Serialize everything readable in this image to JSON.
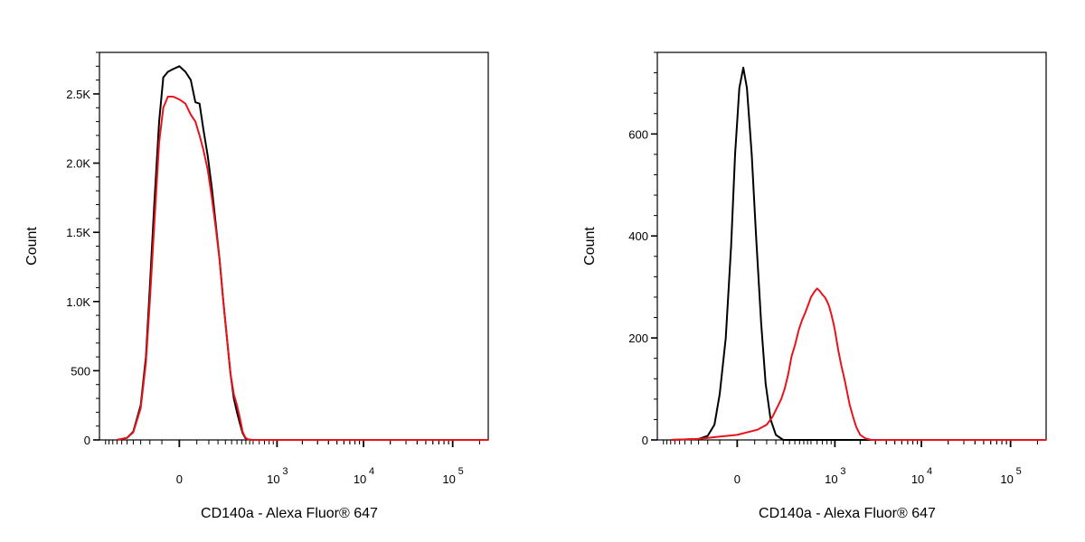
{
  "chart_data": [
    {
      "type": "line",
      "ylabel": "Count",
      "xlabel": "CD140a - Alexa Fluor® 647",
      "ylim": [
        0,
        2800
      ],
      "y_ticks": [
        {
          "value": 0,
          "label": "0"
        },
        {
          "value": 500,
          "label": "500"
        },
        {
          "value": 1000,
          "label": "1.0K"
        },
        {
          "value": 1500,
          "label": "1.5K"
        },
        {
          "value": 2000,
          "label": "2.0K"
        },
        {
          "value": 2500,
          "label": "2.5K"
        }
      ],
      "x_ticks": [
        {
          "value": 0,
          "label": "0"
        },
        {
          "value": 1000,
          "label": "10",
          "sup": "3"
        },
        {
          "value": 10000,
          "label": "10",
          "sup": "4"
        },
        {
          "value": 100000,
          "label": "10",
          "sup": "5"
        }
      ],
      "series": [
        {
          "color": "#000000",
          "points": [
            [
              -350,
              0
            ],
            [
              -250,
              15
            ],
            [
              -200,
              60
            ],
            [
              -150,
              250
            ],
            [
              -120,
              600
            ],
            [
              -100,
              1100
            ],
            [
              -80,
              1700
            ],
            [
              -60,
              2300
            ],
            [
              -45,
              2620
            ],
            [
              -30,
              2660
            ],
            [
              -15,
              2680
            ],
            [
              0,
              2700
            ],
            [
              15,
              2660
            ],
            [
              30,
              2600
            ],
            [
              45,
              2440
            ],
            [
              60,
              2430
            ],
            [
              75,
              2250
            ],
            [
              95,
              2050
            ],
            [
              115,
              1820
            ],
            [
              135,
              1580
            ],
            [
              160,
              1300
            ],
            [
              185,
              1000
            ],
            [
              210,
              750
            ],
            [
              240,
              480
            ],
            [
              270,
              300
            ],
            [
              300,
              200
            ],
            [
              330,
              120
            ],
            [
              360,
              50
            ],
            [
              390,
              15
            ],
            [
              420,
              5
            ],
            [
              480,
              0
            ],
            [
              100000,
              0
            ],
            [
              250000,
              0
            ]
          ]
        },
        {
          "color": "#e8141b",
          "points": [
            [
              -350,
              0
            ],
            [
              -250,
              15
            ],
            [
              -200,
              55
            ],
            [
              -150,
              230
            ],
            [
              -120,
              560
            ],
            [
              -100,
              1000
            ],
            [
              -80,
              1550
            ],
            [
              -60,
              2150
            ],
            [
              -45,
              2400
            ],
            [
              -30,
              2480
            ],
            [
              -15,
              2480
            ],
            [
              0,
              2460
            ],
            [
              15,
              2430
            ],
            [
              30,
              2350
            ],
            [
              45,
              2300
            ],
            [
              60,
              2200
            ],
            [
              75,
              2100
            ],
            [
              95,
              1950
            ],
            [
              115,
              1750
            ],
            [
              135,
              1550
            ],
            [
              160,
              1300
            ],
            [
              185,
              1000
            ],
            [
              210,
              750
            ],
            [
              240,
              480
            ],
            [
              270,
              330
            ],
            [
              300,
              250
            ],
            [
              330,
              160
            ],
            [
              360,
              60
            ],
            [
              390,
              20
            ],
            [
              420,
              5
            ],
            [
              480,
              0
            ],
            [
              100000,
              0
            ],
            [
              250000,
              0
            ]
          ]
        }
      ]
    },
    {
      "type": "line",
      "ylabel": "Count",
      "xlabel": "CD140a - Alexa Fluor® 647",
      "ylim": [
        0,
        760
      ],
      "y_ticks": [
        {
          "value": 0,
          "label": "0"
        },
        {
          "value": 200,
          "label": "200"
        },
        {
          "value": 400,
          "label": "400"
        },
        {
          "value": 600,
          "label": "600"
        }
      ],
      "x_ticks": [
        {
          "value": 0,
          "label": "0"
        },
        {
          "value": 1000,
          "label": "10",
          "sup": "3"
        },
        {
          "value": 10000,
          "label": "10",
          "sup": "4"
        },
        {
          "value": 100000,
          "label": "10",
          "sup": "5"
        }
      ],
      "series": [
        {
          "color": "#000000",
          "points": [
            [
              -400,
              0
            ],
            [
              -150,
              2
            ],
            [
              -100,
              8
            ],
            [
              -70,
              30
            ],
            [
              -50,
              90
            ],
            [
              -30,
              200
            ],
            [
              -15,
              380
            ],
            [
              -5,
              560
            ],
            [
              5,
              690
            ],
            [
              15,
              730
            ],
            [
              25,
              690
            ],
            [
              40,
              560
            ],
            [
              55,
              400
            ],
            [
              75,
              230
            ],
            [
              95,
              110
            ],
            [
              120,
              40
            ],
            [
              150,
              10
            ],
            [
              200,
              0
            ],
            [
              250000,
              0
            ]
          ]
        },
        {
          "color": "#e8141b",
          "points": [
            [
              -400,
              0
            ],
            [
              -150,
              2
            ],
            [
              -60,
              6
            ],
            [
              0,
              10
            ],
            [
              60,
              20
            ],
            [
              100,
              30
            ],
            [
              130,
              45
            ],
            [
              160,
              65
            ],
            [
              185,
              80
            ],
            [
              210,
              100
            ],
            [
              240,
              130
            ],
            [
              270,
              165
            ],
            [
              300,
              185
            ],
            [
              340,
              215
            ],
            [
              380,
              235
            ],
            [
              420,
              250
            ],
            [
              460,
              265
            ],
            [
              500,
              280
            ],
            [
              550,
              290
            ],
            [
              600,
              297
            ],
            [
              650,
              292
            ],
            [
              700,
              285
            ],
            [
              750,
              280
            ],
            [
              800,
              272
            ],
            [
              850,
              262
            ],
            [
              900,
              248
            ],
            [
              950,
              232
            ],
            [
              1000,
              215
            ],
            [
              1050,
              195
            ],
            [
              1100,
              175
            ],
            [
              1200,
              145
            ],
            [
              1300,
              120
            ],
            [
              1400,
              95
            ],
            [
              1500,
              70
            ],
            [
              1650,
              45
            ],
            [
              1800,
              25
            ],
            [
              2000,
              10
            ],
            [
              2300,
              3
            ],
            [
              2700,
              0
            ],
            [
              250000,
              0
            ]
          ]
        }
      ]
    }
  ]
}
